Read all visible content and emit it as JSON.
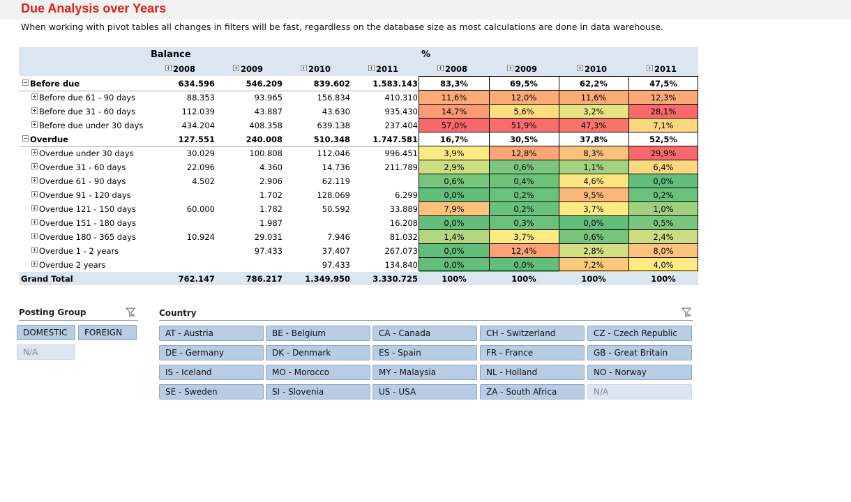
{
  "title": "Due Analysis over Years",
  "subtitle": "When working with pivot tables all changes in filters will be fast, regardless on the database size as most calculations are done in data warehouse.",
  "pivot": {
    "balance_header": "Balance",
    "pct_header": "%",
    "years": [
      "2008",
      "2009",
      "2010",
      "2011"
    ],
    "rows": [
      {
        "label": "Before due",
        "level": 0,
        "bold": true,
        "tree": "minus",
        "balance": [
          "634.596",
          "546.209",
          "839.602",
          "1.583.143"
        ],
        "pct": [
          "83,3%",
          "69,5%",
          "62,2%",
          "47,5%"
        ],
        "colors": [
          "#ffffff",
          "#ffffff",
          "#ffffff",
          "#ffffff"
        ]
      },
      {
        "label": "Before due 61 - 90 days",
        "level": 1,
        "tree": "plus",
        "balance": [
          "88.353",
          "93.965",
          "156.834",
          "410.310"
        ],
        "pct": [
          "11,6%",
          "12,0%",
          "11,6%",
          "12,3%"
        ],
        "colors": [
          "#fcaa78",
          "#fcaa78",
          "#fcaa78",
          "#fca877"
        ]
      },
      {
        "label": "Before due 31 - 60 days",
        "level": 1,
        "tree": "plus",
        "balance": [
          "112.039",
          "43.887",
          "43.630",
          "935.430"
        ],
        "pct": [
          "14,7%",
          "5,6%",
          "3,2%",
          "28,1%"
        ],
        "colors": [
          "#fb9a73",
          "#fedd81",
          "#e3e383",
          "#f8696b"
        ]
      },
      {
        "label": "Before due under 30 days",
        "level": 1,
        "tree": "plus",
        "balance": [
          "434.204",
          "408.358",
          "639.138",
          "237.404"
        ],
        "pct": [
          "57,0%",
          "51,9%",
          "47,3%",
          "7,1%"
        ],
        "colors": [
          "#f8696b",
          "#f86e6c",
          "#f9746d",
          "#fed580"
        ]
      },
      {
        "label": "Overdue",
        "level": 0,
        "bold": true,
        "tree": "minus",
        "balance": [
          "127.551",
          "240.008",
          "510.348",
          "1.747.581"
        ],
        "pct": [
          "16,7%",
          "30,5%",
          "37,8%",
          "52,5%"
        ],
        "colors": [
          "#ffffff",
          "#ffffff",
          "#ffffff",
          "#ffffff"
        ]
      },
      {
        "label": "Overdue under 30 days",
        "level": 1,
        "tree": "plus",
        "balance": [
          "30.029",
          "100.808",
          "112.046",
          "996.451"
        ],
        "pct": [
          "3,9%",
          "12,8%",
          "8,3%",
          "29,9%"
        ],
        "colors": [
          "#ffeb84",
          "#fca677",
          "#fdc17c",
          "#f8696b"
        ]
      },
      {
        "label": "Overdue 31 - 60 days",
        "level": 1,
        "tree": "plus",
        "balance": [
          "22.096",
          "4.360",
          "14.736",
          "211.789"
        ],
        "pct": [
          "2,9%",
          "0,6%",
          "1,1%",
          "6,4%"
        ],
        "colors": [
          "#cddd82",
          "#7bc67c",
          "#a3d17f",
          "#fed881"
        ]
      },
      {
        "label": "Overdue 61 - 90 days",
        "level": 1,
        "tree": "plus",
        "balance": [
          "4.502",
          "2.906",
          "62.119",
          ""
        ],
        "pct": [
          "0,6%",
          "0,4%",
          "4,6%",
          "0,0%"
        ],
        "colors": [
          "#77c57c",
          "#6ec27b",
          "#fee783",
          "#63be7b"
        ]
      },
      {
        "label": "Overdue 91 - 120 days",
        "level": 1,
        "tree": "plus",
        "balance": [
          "",
          "1.702",
          "128.069",
          "6.299"
        ],
        "pct": [
          "0,0%",
          "0,2%",
          "9,5%",
          "0,2%"
        ],
        "colors": [
          "#63be7b",
          "#6ac17b",
          "#fcb87a",
          "#6ac17b"
        ]
      },
      {
        "label": "Overdue 121 - 150 days",
        "level": 1,
        "tree": "plus",
        "balance": [
          "60.000",
          "1.782",
          "50.592",
          "33.889"
        ],
        "pct": [
          "7,9%",
          "0,2%",
          "3,7%",
          "1,0%"
        ],
        "colors": [
          "#fdc37c",
          "#6ac17b",
          "#ffeb84",
          "#9fcf7f"
        ]
      },
      {
        "label": "Overdue 151 - 180 days",
        "level": 1,
        "tree": "plus",
        "balance": [
          "",
          "1.987",
          "",
          "16.208"
        ],
        "pct": [
          "0,0%",
          "0,3%",
          "0,0%",
          "0,5%"
        ],
        "colors": [
          "#63be7b",
          "#6bc17b",
          "#63be7b",
          "#7bc67c"
        ]
      },
      {
        "label": "Overdue 180 - 365 days",
        "level": 1,
        "tree": "plus",
        "balance": [
          "10.924",
          "29.031",
          "7.946",
          "81.032"
        ],
        "pct": [
          "1,4%",
          "3,7%",
          "0,6%",
          "2,4%"
        ],
        "colors": [
          "#b3d680",
          "#ffeb84",
          "#79c57c",
          "#cfdd82"
        ]
      },
      {
        "label": "Overdue 1 - 2 years",
        "level": 1,
        "tree": "plus",
        "balance": [
          "",
          "97.433",
          "37.407",
          "267.073"
        ],
        "pct": [
          "0,0%",
          "12,4%",
          "2,8%",
          "8,0%"
        ],
        "colors": [
          "#63be7b",
          "#fba276",
          "#d3df82",
          "#fdc27c"
        ]
      },
      {
        "label": "Overdue 2 years",
        "level": 1,
        "tree": "plus",
        "balance": [
          "",
          "",
          "97.433",
          "134.840"
        ],
        "pct": [
          "0,0%",
          "0,0%",
          "7,2%",
          "4,0%"
        ],
        "colors": [
          "#63be7b",
          "#63be7b",
          "#fdc97d",
          "#ffeb84"
        ]
      }
    ],
    "grand_total": {
      "label": "Grand Total",
      "balance": [
        "762.147",
        "786.217",
        "1.349.950",
        "3.330.725"
      ],
      "pct": [
        "100%",
        "100%",
        "100%",
        "100%"
      ]
    }
  },
  "posting_group": {
    "title": "Posting Group",
    "items": [
      {
        "label": "DOMESTIC",
        "selected": true
      },
      {
        "label": "FOREIGN",
        "selected": true
      },
      {
        "label": "N/A",
        "selected": false
      }
    ]
  },
  "country": {
    "title": "Country",
    "items": [
      {
        "label": "AT - Austria",
        "selected": true
      },
      {
        "label": "BE - Belgium",
        "selected": true
      },
      {
        "label": "CA - Canada",
        "selected": true
      },
      {
        "label": "CH - Switzerland",
        "selected": true
      },
      {
        "label": "CZ - Czech Republic",
        "selected": true
      },
      {
        "label": "DE - Germany",
        "selected": true
      },
      {
        "label": "DK - Denmark",
        "selected": true
      },
      {
        "label": "ES - Spain",
        "selected": true
      },
      {
        "label": "FR - France",
        "selected": true
      },
      {
        "label": "GB - Great Britain",
        "selected": true
      },
      {
        "label": "IS - Iceland",
        "selected": true
      },
      {
        "label": "MO - Morocco",
        "selected": true
      },
      {
        "label": "MY - Malaysia",
        "selected": true
      },
      {
        "label": "NL - Holland",
        "selected": true
      },
      {
        "label": "NO - Norway",
        "selected": true
      },
      {
        "label": "SE - Sweden",
        "selected": true
      },
      {
        "label": "SI - Slovenia",
        "selected": true
      },
      {
        "label": "US - USA",
        "selected": true
      },
      {
        "label": "ZA - South Africa",
        "selected": true
      },
      {
        "label": "N/A",
        "selected": false
      }
    ]
  }
}
